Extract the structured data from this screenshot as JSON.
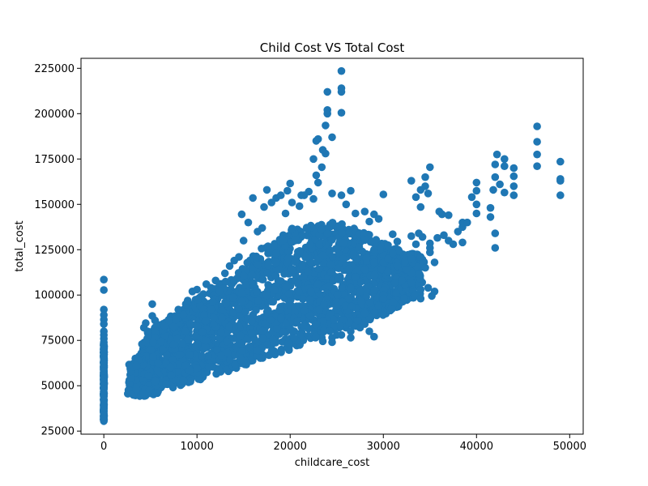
{
  "chart_data": {
    "type": "scatter",
    "title": "Child Cost VS Total Cost",
    "xlabel": "childcare_cost",
    "ylabel": "total_cost",
    "xlim": [
      -2450,
      51450
    ],
    "ylim": [
      23300,
      230500
    ],
    "xticks": [
      0,
      10000,
      20000,
      30000,
      40000,
      50000
    ],
    "xtick_labels": [
      "0",
      "10000",
      "20000",
      "30000",
      "40000",
      "50000"
    ],
    "yticks": [
      25000,
      50000,
      75000,
      100000,
      125000,
      150000,
      175000,
      200000,
      225000
    ],
    "ytick_labels": [
      "25000",
      "50000",
      "75000",
      "100000",
      "125000",
      "150000",
      "175000",
      "200000",
      "225000"
    ],
    "grid": false,
    "legend": "none",
    "marker_color": "#1f77b4",
    "dense_band": {
      "description_of_cloud": "main mass of points, lower and upper boundary of total_cost per childcare_cost",
      "x": [
        3000,
        4000,
        5000,
        6000,
        8000,
        10000,
        12000,
        14000,
        16000,
        18000,
        20000,
        22000,
        24000,
        26000,
        28000,
        30000,
        32000,
        34000
      ],
      "y_low": [
        44000,
        43500,
        44000,
        45000,
        48000,
        52000,
        55000,
        58000,
        61000,
        65000,
        68000,
        72000,
        75000,
        80000,
        84000,
        88000,
        95000,
        100000
      ],
      "y_high": [
        62000,
        68000,
        80000,
        85000,
        92000,
        100000,
        105000,
        112000,
        122000,
        130000,
        138000,
        140000,
        142000,
        140000,
        135000,
        130000,
        125000,
        123000
      ]
    },
    "series": [
      {
        "points": [
          [
            0,
            108500
          ],
          [
            0,
            102800
          ],
          [
            0,
            92000
          ],
          [
            0,
            89000
          ],
          [
            0,
            86500
          ],
          [
            0,
            84000
          ],
          [
            0,
            80000
          ],
          [
            0,
            78000
          ],
          [
            0,
            76000
          ],
          [
            0,
            74000
          ],
          [
            0,
            72000
          ],
          [
            0,
            70000
          ],
          [
            0,
            68000
          ],
          [
            0,
            66000
          ],
          [
            0,
            64000
          ],
          [
            0,
            62000
          ],
          [
            0,
            60000
          ],
          [
            0,
            58000
          ],
          [
            0,
            56000
          ],
          [
            0,
            54000
          ],
          [
            0,
            52000
          ],
          [
            0,
            50000
          ],
          [
            0,
            48000
          ],
          [
            0,
            46000
          ],
          [
            0,
            44000
          ],
          [
            0,
            42000
          ],
          [
            0,
            40000
          ],
          [
            0,
            38000
          ],
          [
            0,
            36000
          ],
          [
            0,
            34000
          ],
          [
            0,
            32000
          ],
          [
            0,
            30500
          ],
          [
            2900,
            58000
          ],
          [
            3200,
            60500
          ],
          [
            3500,
            61000
          ],
          [
            2900,
            47000
          ],
          [
            3200,
            45500
          ],
          [
            3500,
            48000
          ],
          [
            4300,
            82000
          ],
          [
            4500,
            84500
          ],
          [
            4700,
            80000
          ],
          [
            5200,
            95000
          ],
          [
            5200,
            88500
          ],
          [
            5500,
            86000
          ],
          [
            6500,
            83000
          ],
          [
            7000,
            86000
          ],
          [
            8000,
            92000
          ],
          [
            8800,
            95000
          ],
          [
            9000,
            97000
          ],
          [
            9500,
            102000
          ],
          [
            10000,
            103000
          ],
          [
            11000,
            106000
          ],
          [
            11500,
            104000
          ],
          [
            12000,
            108000
          ],
          [
            13000,
            112000
          ],
          [
            13500,
            116000
          ],
          [
            14500,
            121000
          ],
          [
            14000,
            119000
          ],
          [
            15000,
            130000
          ],
          [
            14800,
            144500
          ],
          [
            15500,
            140000
          ],
          [
            16000,
            153500
          ],
          [
            16500,
            135000
          ],
          [
            17000,
            137000
          ],
          [
            17200,
            148500
          ],
          [
            17500,
            158000
          ],
          [
            18000,
            151000
          ],
          [
            18500,
            153500
          ],
          [
            19000,
            155000
          ],
          [
            19500,
            145000
          ],
          [
            19700,
            157500
          ],
          [
            20000,
            161500
          ],
          [
            20200,
            151000
          ],
          [
            21000,
            149000
          ],
          [
            21200,
            155000
          ],
          [
            21500,
            155000
          ],
          [
            22000,
            157000
          ],
          [
            22500,
            153000
          ],
          [
            23000,
            162000
          ],
          [
            22800,
            166000
          ],
          [
            23400,
            170500
          ],
          [
            23800,
            178000
          ],
          [
            23500,
            180000
          ],
          [
            23000,
            186000
          ],
          [
            24500,
            187000
          ],
          [
            24000,
            200000
          ],
          [
            24000,
            202000
          ],
          [
            24000,
            212000
          ],
          [
            25500,
            214000
          ],
          [
            25500,
            212000
          ],
          [
            25500,
            223500
          ],
          [
            25500,
            200500
          ],
          [
            24500,
            156000
          ],
          [
            23800,
            193500
          ],
          [
            22500,
            175000
          ],
          [
            22800,
            185000
          ],
          [
            26000,
            150000
          ],
          [
            26500,
            157500
          ],
          [
            25500,
            155000
          ],
          [
            27000,
            145000
          ],
          [
            28000,
            146000
          ],
          [
            28500,
            140500
          ],
          [
            29000,
            144500
          ],
          [
            29500,
            142000
          ],
          [
            30000,
            155500
          ],
          [
            30000,
            118000
          ],
          [
            30500,
            127500
          ],
          [
            31000,
            133500
          ],
          [
            31000,
            123000
          ],
          [
            31500,
            116000
          ],
          [
            32000,
            108000
          ],
          [
            30000,
            100000
          ],
          [
            30000,
            98000
          ],
          [
            29500,
            94000
          ],
          [
            29000,
            90000
          ],
          [
            28500,
            88000
          ],
          [
            28000,
            84000
          ],
          [
            27500,
            82000
          ],
          [
            26500,
            80000
          ],
          [
            25500,
            78000
          ],
          [
            24500,
            76500
          ],
          [
            23500,
            74500
          ],
          [
            24500,
            74000
          ],
          [
            25000,
            78000
          ],
          [
            26500,
            76500
          ],
          [
            28500,
            80000
          ],
          [
            29000,
            77000
          ],
          [
            28000,
            90000
          ],
          [
            27500,
            102000
          ],
          [
            26500,
            104000
          ],
          [
            27000,
            110000
          ],
          [
            28000,
            114000
          ],
          [
            29000,
            118000
          ],
          [
            29000,
            125000
          ],
          [
            30500,
            120000
          ],
          [
            31500,
            129500
          ],
          [
            33000,
            163000
          ],
          [
            33500,
            154000
          ],
          [
            34000,
            148500
          ],
          [
            34000,
            158000
          ],
          [
            34500,
            160000
          ],
          [
            34500,
            165000
          ],
          [
            35000,
            170500
          ],
          [
            34800,
            156000
          ],
          [
            33000,
            132500
          ],
          [
            33500,
            128000
          ],
          [
            33800,
            134000
          ],
          [
            34200,
            132000
          ],
          [
            33000,
            120000
          ],
          [
            34000,
            121000
          ],
          [
            35000,
            126000
          ],
          [
            35000,
            123500
          ],
          [
            35500,
            118000
          ],
          [
            34500,
            115000
          ],
          [
            33000,
            112000
          ],
          [
            32500,
            114000
          ],
          [
            34000,
            103000
          ],
          [
            34000,
            98000
          ],
          [
            34800,
            104000
          ],
          [
            35500,
            102000
          ],
          [
            35200,
            99500
          ],
          [
            33000,
            107000
          ],
          [
            35000,
            128500
          ],
          [
            35800,
            131500
          ],
          [
            36000,
            146000
          ],
          [
            36300,
            144500
          ],
          [
            36500,
            133000
          ],
          [
            37000,
            130000
          ],
          [
            37500,
            128000
          ],
          [
            37000,
            144000
          ],
          [
            38000,
            135000
          ],
          [
            38500,
            137500
          ],
          [
            38500,
            140000
          ],
          [
            38500,
            129000
          ],
          [
            39000,
            140000
          ],
          [
            40000,
            157500
          ],
          [
            40000,
            150000
          ],
          [
            40000,
            145000
          ],
          [
            40000,
            162000
          ],
          [
            39500,
            154000
          ],
          [
            41500,
            148000
          ],
          [
            41500,
            143000
          ],
          [
            41800,
            158000
          ],
          [
            42000,
            165000
          ],
          [
            42000,
            172000
          ],
          [
            42200,
            177500
          ],
          [
            42000,
            134000
          ],
          [
            42000,
            126000
          ],
          [
            42500,
            161000
          ],
          [
            43000,
            175000
          ],
          [
            43000,
            171000
          ],
          [
            43000,
            156500
          ],
          [
            44000,
            170000
          ],
          [
            44000,
            165500
          ],
          [
            44000,
            160000
          ],
          [
            44000,
            155000
          ],
          [
            46500,
            193000
          ],
          [
            46500,
            184500
          ],
          [
            46500,
            177500
          ],
          [
            46500,
            171000
          ],
          [
            49000,
            173500
          ],
          [
            49000,
            164000
          ],
          [
            49000,
            163000
          ],
          [
            49000,
            155000
          ]
        ]
      }
    ]
  }
}
